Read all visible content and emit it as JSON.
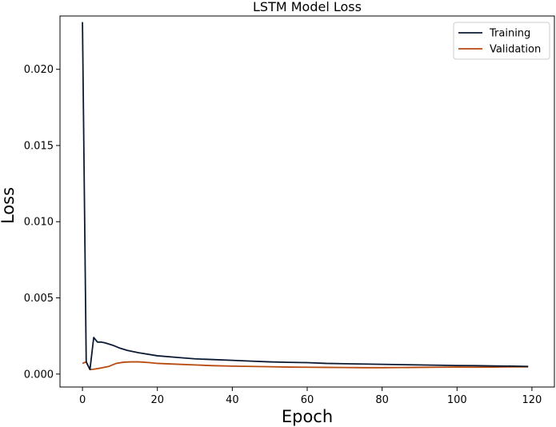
{
  "chart_data": {
    "type": "line",
    "title": "LSTM Model Loss",
    "xlabel": "Epoch",
    "ylabel": "Loss",
    "xlim": [
      -6,
      126
    ],
    "ylim": [
      -0.00085,
      0.0235
    ],
    "xticks": [
      0,
      20,
      40,
      60,
      80,
      100,
      120
    ],
    "yticks": [
      0.0,
      0.005,
      0.01,
      0.015,
      0.02
    ],
    "ytick_labels": [
      "0.000",
      "0.005",
      "0.010",
      "0.015",
      "0.020"
    ],
    "grid": false,
    "legend": {
      "position": "top-right"
    },
    "series": [
      {
        "name": "Training",
        "color": "#0b1a33",
        "x": [
          0,
          1,
          2,
          3,
          4,
          5,
          6,
          8,
          10,
          12,
          15,
          20,
          25,
          30,
          35,
          40,
          45,
          50,
          55,
          60,
          65,
          70,
          75,
          80,
          85,
          90,
          95,
          100,
          105,
          110,
          115,
          119
        ],
        "y": [
          0.0231,
          0.0008,
          0.0003,
          0.0024,
          0.0021,
          0.0021,
          0.00205,
          0.0019,
          0.0017,
          0.00155,
          0.0014,
          0.0012,
          0.0011,
          0.001,
          0.00095,
          0.0009,
          0.00085,
          0.0008,
          0.00077,
          0.00075,
          0.0007,
          0.00068,
          0.00066,
          0.00064,
          0.00062,
          0.0006,
          0.00058,
          0.00056,
          0.00055,
          0.00053,
          0.00052,
          0.0005
        ]
      },
      {
        "name": "Validation",
        "color": "#b84a10",
        "x": [
          0,
          1,
          2,
          3,
          5,
          7,
          9,
          11,
          13,
          15,
          18,
          20,
          25,
          30,
          35,
          40,
          45,
          50,
          55,
          60,
          65,
          70,
          75,
          80,
          85,
          90,
          95,
          100,
          105,
          110,
          115,
          119
        ],
        "y": [
          0.0007,
          0.0008,
          0.0003,
          0.00032,
          0.0004,
          0.0005,
          0.0007,
          0.00078,
          0.0008,
          0.0008,
          0.00075,
          0.0007,
          0.00065,
          0.0006,
          0.00055,
          0.00052,
          0.0005,
          0.00048,
          0.00046,
          0.00045,
          0.00044,
          0.00043,
          0.00042,
          0.00042,
          0.00043,
          0.00044,
          0.00045,
          0.00046,
          0.00045,
          0.00046,
          0.00047,
          0.00047
        ]
      }
    ]
  }
}
